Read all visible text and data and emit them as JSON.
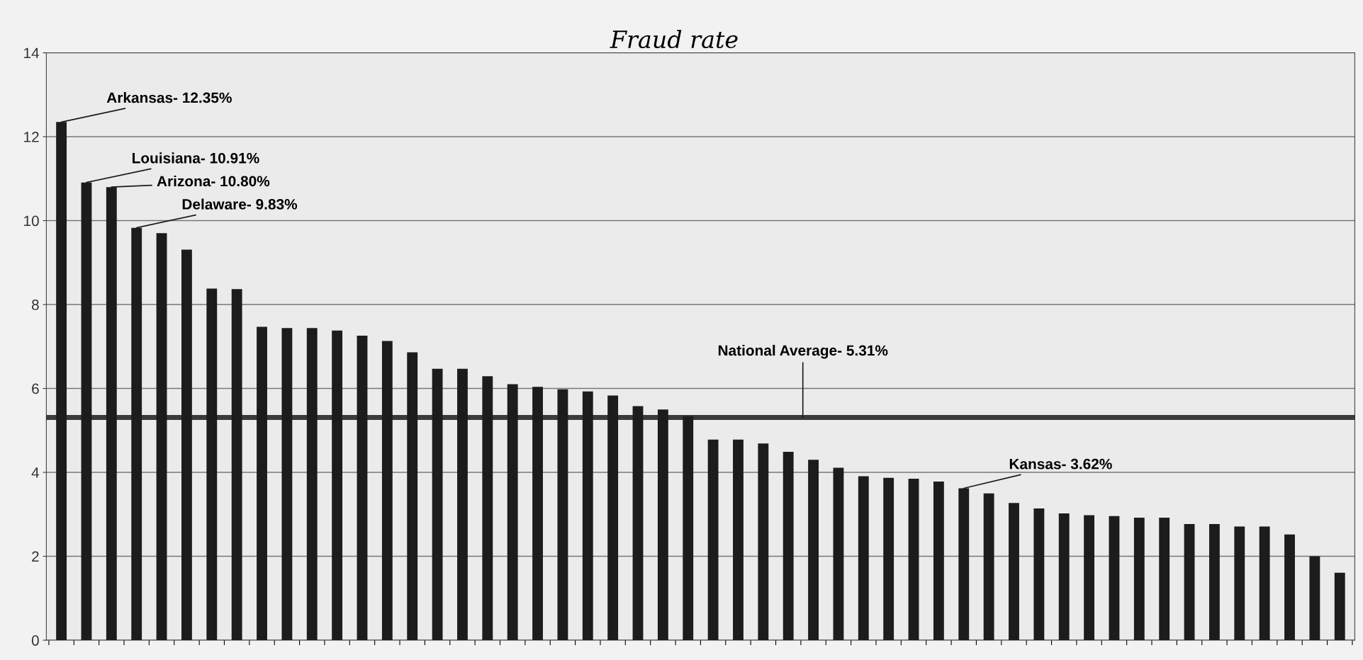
{
  "chart_data": {
    "type": "bar",
    "title": "Fraud rate",
    "categories": [
      null,
      null,
      null,
      null,
      null,
      null,
      null,
      null,
      null,
      null,
      null,
      null,
      null,
      null,
      null,
      null,
      null,
      null,
      null,
      null,
      null,
      null,
      null,
      null,
      null,
      null,
      null,
      null,
      null,
      null,
      null,
      null,
      null,
      null,
      null,
      null,
      null,
      null,
      null,
      null,
      null,
      null,
      null,
      null,
      null,
      null,
      null,
      null,
      null,
      null,
      null,
      null
    ],
    "values": [
      12.35,
      10.91,
      10.8,
      9.83,
      9.7,
      9.31,
      8.38,
      8.37,
      7.47,
      7.44,
      7.44,
      7.38,
      7.26,
      7.13,
      6.86,
      6.47,
      6.47,
      6.29,
      6.1,
      6.04,
      5.98,
      5.93,
      5.83,
      5.58,
      5.5,
      5.34,
      4.78,
      4.78,
      4.69,
      4.49,
      4.3,
      4.11,
      3.91,
      3.87,
      3.85,
      3.78,
      3.62,
      3.5,
      3.27,
      3.14,
      3.02,
      2.98,
      2.96,
      2.92,
      2.92,
      2.77,
      2.77,
      2.71,
      2.71,
      2.52,
      2.0,
      1.61
    ],
    "value_labels": [
      "Arkansas- 12.35%",
      "Louisiana- 10.91%",
      "Arizona- 10.80%",
      "Delaware- 9.83%",
      null,
      null,
      null,
      null,
      null,
      null,
      null,
      null,
      null,
      null,
      null,
      null,
      null,
      null,
      null,
      null,
      null,
      null,
      null,
      null,
      null,
      null,
      null,
      null,
      null,
      null,
      null,
      null,
      null,
      null,
      null,
      null,
      "Kansas- 3.62%",
      null,
      null,
      null,
      null,
      null,
      null,
      null,
      null,
      null,
      null,
      null,
      null,
      null,
      null,
      null
    ],
    "color": "#1c1c1c",
    "ylim": [
      0,
      14
    ],
    "yticks": [
      0,
      2,
      4,
      6,
      8,
      10,
      12,
      14
    ],
    "grid": "y",
    "tick_labels": "y",
    "ref_lines": [
      {
        "axis": "y",
        "value": 5.31,
        "label": "National Average- 5.31%",
        "color": "#1c1c1c"
      }
    ]
  }
}
